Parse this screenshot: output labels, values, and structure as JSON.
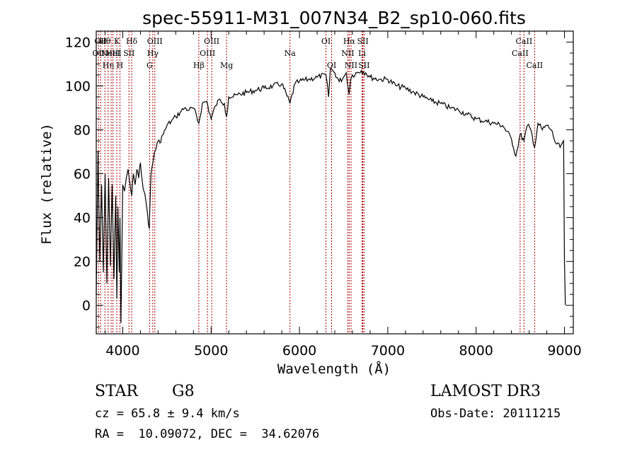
{
  "colors": {
    "spectrum": "#000000",
    "line_markers": "#aa0000",
    "background": "#ffffff",
    "axes": "#000000"
  },
  "chart_data": {
    "type": "line",
    "title": "spec-55911-M31_007N34_B2_sp10-060.fits",
    "xlabel": "Wavelength (Å)",
    "ylabel": "Flux (relative)",
    "xlim": [
      3700,
      9100
    ],
    "ylim": [
      -13,
      125
    ],
    "grid": false,
    "x_ticks": [
      4000,
      5000,
      6000,
      7000,
      8000,
      9000
    ],
    "x_tick_labels": [
      "4000",
      "5000",
      "6000",
      "7000",
      "8000",
      "9000"
    ],
    "y_ticks": [
      0,
      20,
      40,
      60,
      80,
      100,
      120
    ],
    "y_tick_labels": [
      "0",
      "20",
      "40",
      "60",
      "80",
      "100",
      "120"
    ],
    "series": [
      {
        "x": [
          3700,
          3720,
          3740,
          3760,
          3780,
          3800,
          3820,
          3840,
          3860,
          3880,
          3900,
          3920,
          3933,
          3945,
          3960,
          3968,
          3980,
          4000,
          4020,
          4040,
          4060,
          4080,
          4101,
          4120,
          4140,
          4160,
          4180,
          4200,
          4220,
          4240,
          4260,
          4280,
          4300,
          4320,
          4340,
          4360,
          4380,
          4400,
          4420,
          4440,
          4460,
          4480,
          4500,
          4550,
          4600,
          4650,
          4700,
          4750,
          4800,
          4861,
          4900,
          4950,
          5000,
          5050,
          5100,
          5150,
          5175,
          5200,
          5250,
          5300,
          5400,
          5500,
          5600,
          5700,
          5800,
          5893,
          5950,
          6000,
          6100,
          6200,
          6300,
          6330,
          6350,
          6400,
          6450,
          6500,
          6530,
          6563,
          6580,
          6600,
          6650,
          6700,
          6750,
          6800,
          6900,
          7000,
          7100,
          7200,
          7300,
          7400,
          7500,
          7600,
          7700,
          7800,
          7900,
          8000,
          8100,
          8200,
          8300,
          8400,
          8450,
          8498,
          8542,
          8580,
          8620,
          8662,
          8700,
          8750,
          8800,
          8850,
          8900,
          8950,
          8990,
          9000,
          9010
        ],
        "y": [
          5,
          70,
          20,
          55,
          15,
          60,
          10,
          58,
          18,
          55,
          12,
          50,
          3,
          45,
          15,
          40,
          -8,
          55,
          52,
          58,
          62,
          56,
          50,
          60,
          55,
          62,
          58,
          65,
          57,
          52,
          48,
          42,
          35,
          60,
          65,
          70,
          72,
          75,
          74,
          77,
          78,
          80,
          82,
          84,
          86,
          88,
          90,
          89,
          90,
          83,
          92,
          93,
          85,
          91,
          94,
          92,
          86,
          95,
          95,
          96,
          97,
          98,
          99,
          100,
          101,
          92,
          101,
          102,
          103,
          104,
          105,
          95,
          108,
          106,
          102,
          104,
          106,
          96,
          103,
          105,
          106,
          107,
          106,
          104,
          103,
          103,
          100,
          99,
          97,
          95,
          93,
          92,
          90,
          89,
          87,
          85,
          84,
          83,
          82,
          76,
          68,
          78,
          75,
          82,
          80,
          72,
          83,
          80,
          82,
          80,
          74,
          72,
          75,
          20,
          0
        ]
      }
    ],
    "line_markers": [
      {
        "wavelength": 3726,
        "row": 2,
        "label": "OII"
      },
      {
        "wavelength": 3750,
        "row": 1,
        "label": "OII"
      },
      {
        "wavelength": 3798,
        "row": 1,
        "label": "Hθ"
      },
      {
        "wavelength": 3835,
        "row": 3,
        "label": "Hη"
      },
      {
        "wavelength": 3869,
        "row": 2,
        "label": "NeIII"
      },
      {
        "wavelength": 3889,
        "row": 2,
        "label": "HeI"
      },
      {
        "wavelength": 3933,
        "row": 1,
        "label": "K"
      },
      {
        "wavelength": 3968,
        "row": 3,
        "label": "H"
      },
      {
        "wavelength": 4070,
        "row": 2,
        "label": "SII"
      },
      {
        "wavelength": 4101,
        "row": 1,
        "label": "Hδ"
      },
      {
        "wavelength": 4304,
        "row": 3,
        "label": "G"
      },
      {
        "wavelength": 4340,
        "row": 2,
        "label": "Hγ"
      },
      {
        "wavelength": 4363,
        "row": 1,
        "label": "OIII"
      },
      {
        "wavelength": 4861,
        "row": 3,
        "label": "Hβ"
      },
      {
        "wavelength": 4959,
        "row": 2,
        "label": "OIII"
      },
      {
        "wavelength": 5007,
        "row": 1,
        "label": "OIII"
      },
      {
        "wavelength": 5175,
        "row": 3,
        "label": "Mg"
      },
      {
        "wavelength": 5893,
        "row": 2,
        "label": "Na"
      },
      {
        "wavelength": 6300,
        "row": 1,
        "label": "OI"
      },
      {
        "wavelength": 6364,
        "row": 3,
        "label": "OI"
      },
      {
        "wavelength": 6548,
        "row": 2,
        "label": "NII"
      },
      {
        "wavelength": 6563,
        "row": 1,
        "label": "Hα"
      },
      {
        "wavelength": 6584,
        "row": 3,
        "label": "NII"
      },
      {
        "wavelength": 6708,
        "row": 2,
        "label": "Li"
      },
      {
        "wavelength": 6717,
        "row": 1,
        "label": "SII"
      },
      {
        "wavelength": 6731,
        "row": 3,
        "label": "SII"
      },
      {
        "wavelength": 8498,
        "row": 2,
        "label": "CaII"
      },
      {
        "wavelength": 8542,
        "row": 1,
        "label": "CaII"
      },
      {
        "wavelength": 8662,
        "row": 3,
        "label": "CaII"
      }
    ]
  },
  "info": {
    "object_class": "STAR",
    "subclass": "G8",
    "survey": "LAMOST DR3",
    "redshift_line": "cz = 65.8 ± 9.4 km/s",
    "obs_date_line": "Obs-Date: 20111215",
    "coords_line": "RA =  10.09072, DEC =  34.62076"
  }
}
